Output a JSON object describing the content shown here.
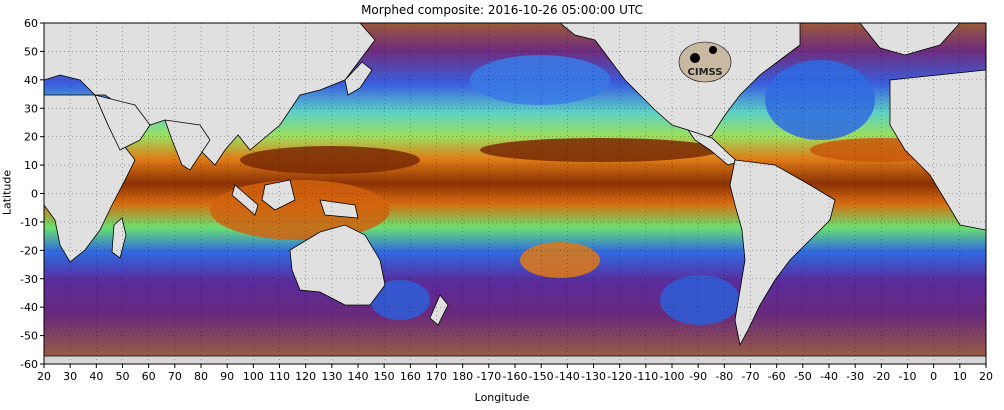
{
  "title": "Morphed composite: 2016-10-26 05:00:00 UTC",
  "axes": {
    "xlabel": "Longitude",
    "ylabel": "Latitude",
    "x_ticks": [
      "20",
      "30",
      "40",
      "50",
      "60",
      "70",
      "80",
      "90",
      "100",
      "110",
      "120",
      "130",
      "140",
      "150",
      "160",
      "170",
      "180",
      "-170",
      "-160",
      "-150",
      "-140",
      "-130",
      "-120",
      "-110",
      "-100",
      "-90",
      "-80",
      "-70",
      "-60",
      "-50",
      "-40",
      "-30",
      "-20",
      "-10",
      "0",
      "10",
      "20"
    ],
    "y_ticks": [
      "60",
      "50",
      "40",
      "30",
      "20",
      "10",
      "0",
      "-10",
      "-20",
      "-30",
      "-40",
      "-50",
      "-60"
    ]
  },
  "logo": {
    "text": "CIMSS"
  },
  "colors": {
    "ocean_base": "#6a2a7a",
    "moist_deep": "#7a2a05",
    "moist_orange": "#e07010",
    "mid_green": "#5fe070",
    "dry_blue": "#2e6fe0",
    "land": "#e0e0e0",
    "polar": "#b07a55"
  }
}
